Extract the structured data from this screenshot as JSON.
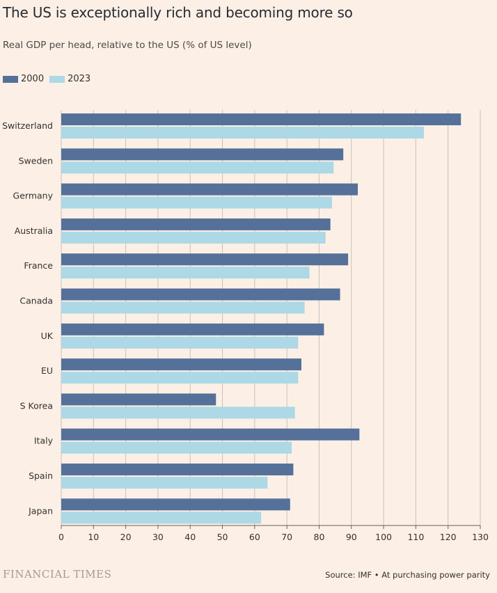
{
  "title": "The US is exceptionally rich and becoming more so",
  "subtitle": "Real GDP per head, relative to the US (% of US level)",
  "footer": {
    "logo": "FINANCIAL TIMES",
    "source": "Source: IMF • At purchasing power parity"
  },
  "colors": {
    "background": "#fcf0e6",
    "series_2000": "#557199",
    "series_2023": "#add8e6",
    "grid": "#c8c0b8"
  },
  "chart_data": {
    "type": "bar",
    "orientation": "horizontal",
    "categories": [
      "Switzerland",
      "Sweden",
      "Germany",
      "Australia",
      "France",
      "Canada",
      "UK",
      "EU",
      "S Korea",
      "Italy",
      "Spain",
      "Japan"
    ],
    "series": [
      {
        "name": "2000",
        "values": [
          124,
          87.5,
          92,
          83.5,
          89,
          86.5,
          81.5,
          74.5,
          48,
          92.5,
          72,
          71
        ]
      },
      {
        "name": "2023",
        "values": [
          112.5,
          84.5,
          84,
          82,
          77,
          75.5,
          73.5,
          73.5,
          72.5,
          71.5,
          64,
          62
        ]
      }
    ],
    "xlim": [
      0,
      130
    ],
    "xticks": [
      "0",
      "10",
      "20",
      "30",
      "40",
      "50",
      "60",
      "70",
      "80",
      "90",
      "100",
      "110",
      "120",
      "130"
    ],
    "grid": true,
    "legend_position": "top-left"
  }
}
